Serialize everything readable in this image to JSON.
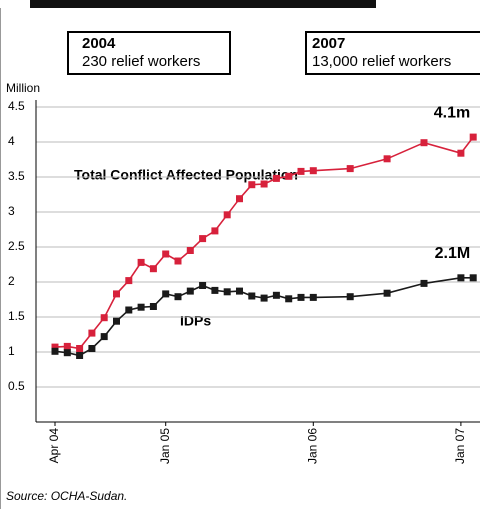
{
  "chart_data": {
    "type": "line",
    "y_label": "Million",
    "x": [
      "2004-04",
      "2004-05",
      "2004-06",
      "2004-07",
      "2004-08",
      "2004-09",
      "2004-10",
      "2004-11",
      "2004-12",
      "2005-01",
      "2005-02",
      "2005-03",
      "2005-04",
      "2005-05",
      "2005-06",
      "2005-07",
      "2005-08",
      "2005-09",
      "2005-10",
      "2005-11",
      "2005-12",
      "2006-01",
      "2006-04",
      "2006-07",
      "2006-10",
      "2007-01",
      "2007-02"
    ],
    "series": [
      {
        "name": "Total Conflict Affected Population",
        "color": "#d7213b",
        "values": [
          1.07,
          1.08,
          1.05,
          1.27,
          1.49,
          1.83,
          2.02,
          2.28,
          2.19,
          2.4,
          2.3,
          2.45,
          2.62,
          2.73,
          2.96,
          3.19,
          3.39,
          3.4,
          3.48,
          3.51,
          3.58,
          3.59,
          3.62,
          3.76,
          3.99,
          3.84,
          4.07
        ]
      },
      {
        "name": "IDPs",
        "color": "#1a1a1a",
        "values": [
          1.01,
          0.99,
          0.95,
          1.05,
          1.22,
          1.44,
          1.6,
          1.64,
          1.65,
          1.83,
          1.79,
          1.87,
          1.95,
          1.88,
          1.86,
          1.87,
          1.8,
          1.77,
          1.81,
          1.76,
          1.78,
          1.78,
          1.79,
          1.84,
          1.98,
          2.06,
          2.06
        ]
      }
    ],
    "end_labels": [
      "4.1m",
      "2.1M"
    ],
    "xticks": [
      {
        "value": "2004-04",
        "label": "Apr 04"
      },
      {
        "value": "2005-01",
        "label": "Jan 05"
      },
      {
        "value": "2006-01",
        "label": "Jan 06"
      },
      {
        "value": "2007-01",
        "label": "Jan 07"
      }
    ],
    "ylim": [
      0,
      4.5
    ],
    "yticks": [
      0.5,
      1,
      1.5,
      2,
      2.5,
      3,
      3.5,
      4,
      4.5
    ],
    "grid": true,
    "annotations": [
      {
        "year": "2004",
        "text": "230 relief workers"
      },
      {
        "year": "2007",
        "text": "13,000 relief workers"
      }
    ],
    "source": "Source: OCHA-Sudan."
  }
}
